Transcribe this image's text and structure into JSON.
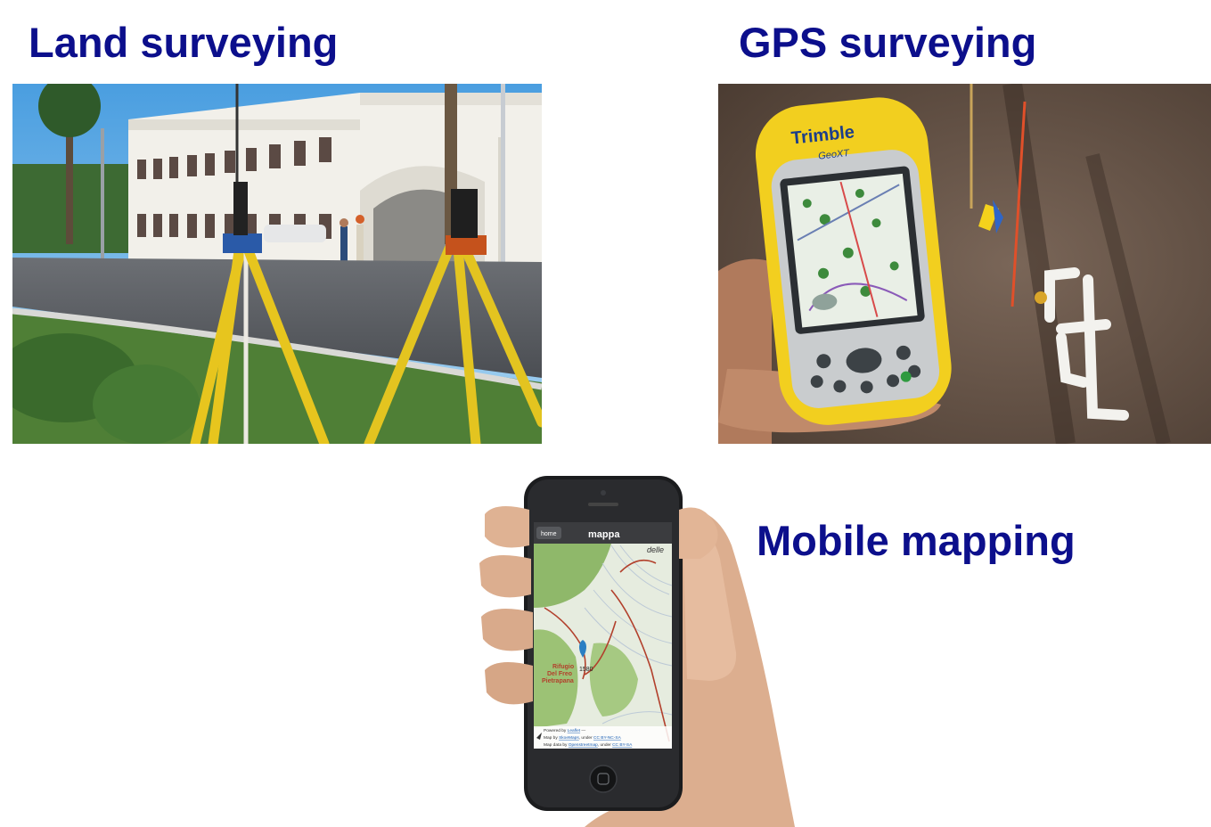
{
  "titles": {
    "land": "Land surveying",
    "gps": "GPS surveying",
    "mobile": "Mobile mapping"
  },
  "gps_device": {
    "brand": "Trimble",
    "model": "GeoXT"
  },
  "phone_app": {
    "back_button": "home",
    "title": "mappa",
    "map_labels": {
      "place_top_right": "delle",
      "refuge_line1": "Rifugio",
      "refuge_line2": "Del Freo",
      "refuge_line3": "Pietrapana",
      "elevation": "1580"
    },
    "attribution": {
      "line1_prefix": "Powered by ",
      "line1_link": "Leaflet",
      "line1_suffix": " —",
      "line2_prefix": "Map by ",
      "line2_link": "SkoeMaps",
      "line2_mid": ", under ",
      "line2_license": "CC BY-NC-SA",
      "line3_prefix": "Map data by ",
      "line3_link": "Openstreetmap",
      "line3_mid": ", under ",
      "line3_license": "CC BY-SA"
    }
  },
  "colors": {
    "title": "#0c0f8c",
    "tripod_yellow": "#e7c51e",
    "device_yellow": "#f2cf1f",
    "map_green": "#8fb86a",
    "map_contour_red": "#b2402c"
  }
}
